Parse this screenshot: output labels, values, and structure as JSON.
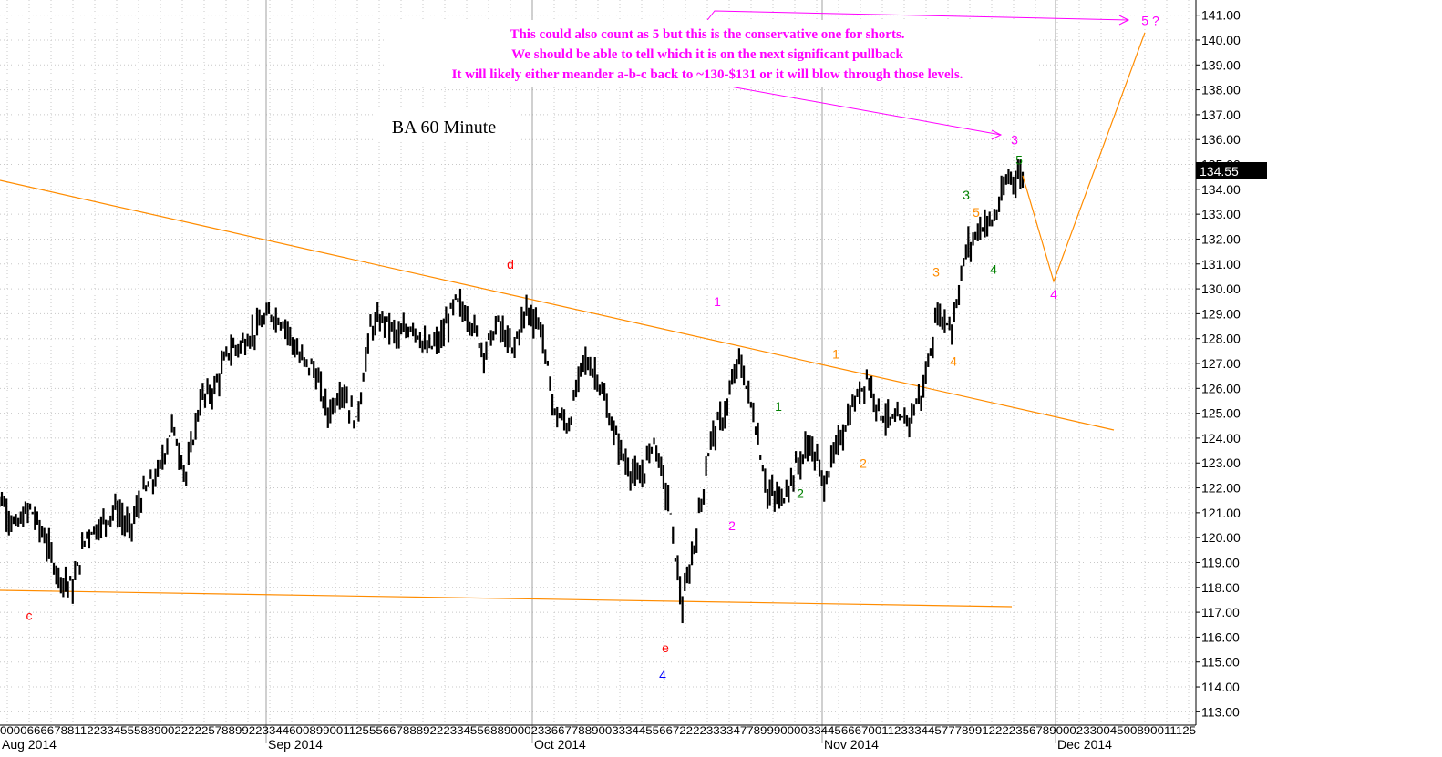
{
  "chart_data": {
    "type": "bar",
    "title": "BA 60 Minute",
    "y_axis": {
      "ticks": [
        "141.00",
        "140.00",
        "139.00",
        "138.00",
        "137.00",
        "136.00",
        "135.00",
        "134.00",
        "133.00",
        "132.00",
        "131.00",
        "130.00",
        "129.00",
        "128.00",
        "127.00",
        "126.00",
        "125.00",
        "124.00",
        "123.00",
        "122.00",
        "121.00",
        "120.00",
        "119.00",
        "118.00",
        "117.00",
        "116.00",
        "115.00",
        "114.00",
        "113.00"
      ],
      "ylim": [
        112.5,
        141.5
      ],
      "side": "right"
    },
    "x_axis": {
      "months": [
        "Aug 2014",
        "Sep 2014",
        "Oct 2014",
        "Nov 2014",
        "Dec 2014"
      ],
      "day_tick_text": "0000666678811223345558890022222578899223344600899001125556678889222334556889000233667788900333445566722223333477899900003344566670011233344577789912222356789000233004500890011125"
    },
    "last_price": "134.55",
    "series": [
      {
        "values": [
          121.5,
          120.4,
          121.2,
          120.0,
          118.5,
          118.0,
          120.2,
          120.5,
          121.2,
          120.3,
          121.8,
          122.5,
          124.5,
          122.5,
          125.5,
          126.0,
          127.5,
          127.8,
          128.4,
          129.0,
          128.6,
          127.2,
          126.8,
          125.0,
          126.0,
          124.6,
          128.4,
          128.8,
          128.0,
          128.6,
          127.5,
          128.0,
          129.5,
          128.8,
          127.5,
          128.6,
          127.5,
          129.2,
          128.5,
          125.0,
          124.5,
          127.2,
          126.5,
          124.5,
          123.0,
          122.2,
          124.0,
          121.5,
          117.2,
          120.2,
          124.0,
          125.0,
          127.2,
          125.0,
          121.8,
          121.5,
          122.8,
          123.8,
          122.2,
          123.8,
          125.2,
          126.5,
          125.0,
          124.6,
          124.8,
          126.0,
          129.0,
          128.5,
          131.5,
          132.5,
          132.8,
          134.5,
          134.55
        ]
      }
    ],
    "annotations": {
      "wave_labels": [
        {
          "text": "c",
          "color": "#ff0000",
          "x": 0.032,
          "price": 116.7
        },
        {
          "text": "d",
          "color": "#ff0000",
          "x": 0.56,
          "price": 130.8
        },
        {
          "text": "e",
          "color": "#ff0000",
          "x": 0.73,
          "price": 115.4
        },
        {
          "text": "4",
          "color": "#0000ff",
          "x": 0.727,
          "price": 114.3
        },
        {
          "text": "1",
          "color": "#ff00ff",
          "x": 0.787,
          "price": 129.3
        },
        {
          "text": "2",
          "color": "#ff00ff",
          "x": 0.803,
          "price": 120.3
        },
        {
          "text": "1",
          "color": "#008000",
          "x": 0.854,
          "price": 125.1
        },
        {
          "text": "2",
          "color": "#008000",
          "x": 0.878,
          "price": 121.6
        },
        {
          "text": "1",
          "color": "#ff8c00",
          "x": 0.917,
          "price": 127.2
        },
        {
          "text": "2",
          "color": "#ff8c00",
          "x": 0.947,
          "price": 122.8
        },
        {
          "text": "3",
          "color": "#ff8c00",
          "x": 1.027,
          "price": 130.5
        },
        {
          "text": "4",
          "color": "#ff8c00",
          "x": 1.046,
          "price": 126.9
        },
        {
          "text": "3",
          "color": "#008000",
          "x": 1.06,
          "price": 133.6
        },
        {
          "text": "5",
          "color": "#ff8c00",
          "x": 1.071,
          "price": 132.9
        },
        {
          "text": "4",
          "color": "#008000",
          "x": 1.09,
          "price": 130.6
        },
        {
          "text": "3",
          "color": "#ff00ff",
          "x": 1.113,
          "price": 135.8
        },
        {
          "text": "5",
          "color": "#008000",
          "x": 1.118,
          "price": 135.0
        },
        {
          "text": "4",
          "color": "#ff00ff",
          "x": 1.156,
          "price": 129.6
        },
        {
          "text": "5 ?",
          "color": "#ff00ff",
          "x": 1.262,
          "price": 140.6
        }
      ],
      "note_lines": [
        "This could also count as 5 but this is the conservative one for shorts.",
        "We should be able to tell which it is on the next significant pullback",
        "It will likely either meander a-b-c back to ~130-$131 or it will blow through those levels."
      ],
      "colors": {
        "bars": "#000000",
        "trendline": "#ff8c00",
        "notes": "#ff00ff",
        "grid": "#c8c8c8",
        "price_tag_bg": "#000000"
      }
    },
    "grid": true
  }
}
